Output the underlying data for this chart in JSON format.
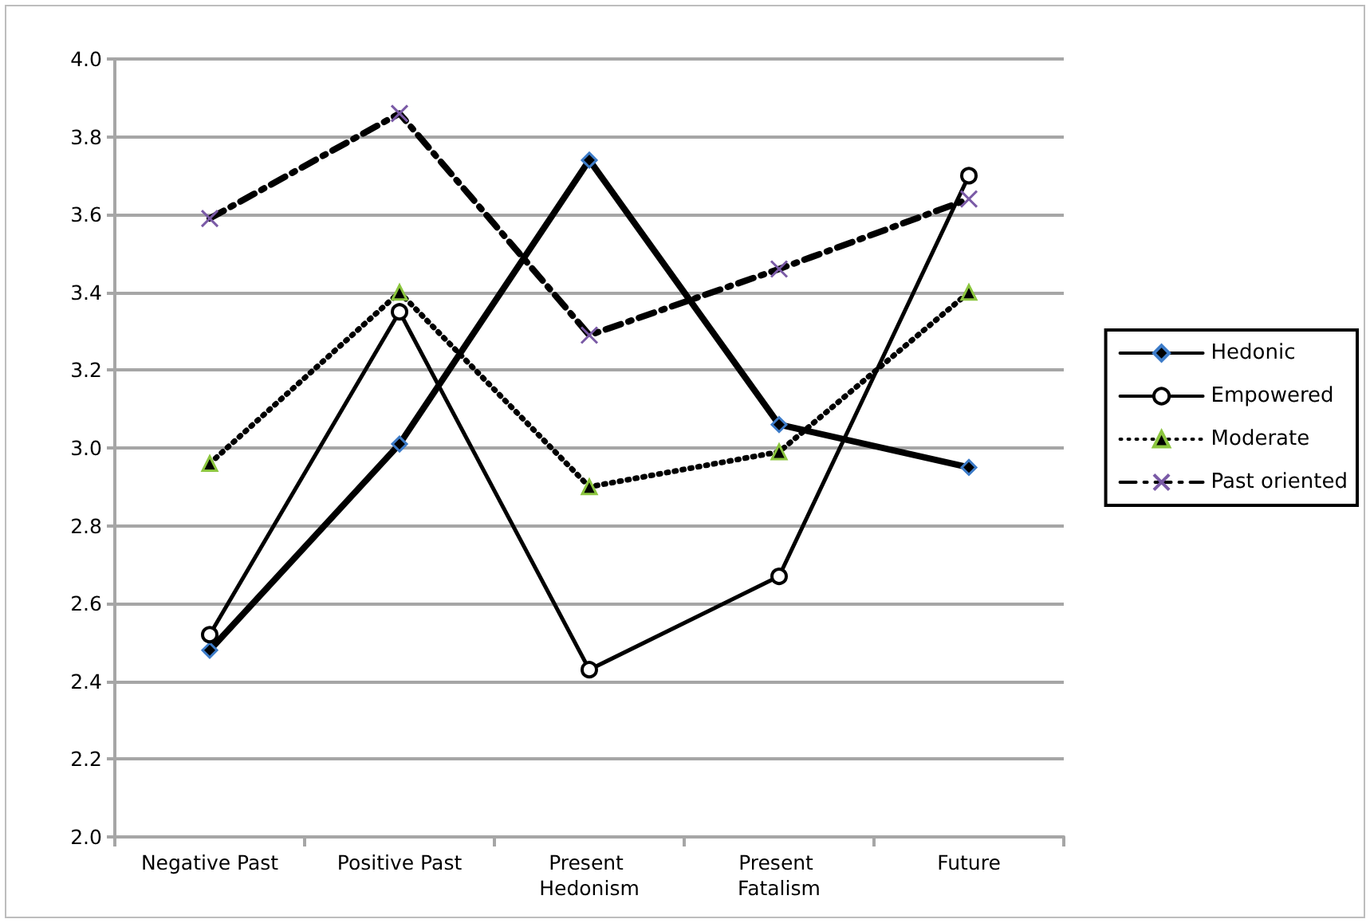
{
  "chart_data": {
    "type": "line",
    "categories": [
      "Negative Past",
      "Positive Past",
      "Present Hedonism",
      "Present Fatalism",
      "Future"
    ],
    "series": [
      {
        "name": "Hedonic",
        "color": "#000000",
        "marker": "diamond",
        "line_style": "solid",
        "values": [
          2.48,
          3.01,
          3.74,
          3.06,
          2.95
        ]
      },
      {
        "name": "Empowered",
        "color": "#000000",
        "marker": "circle",
        "line_style": "solid",
        "values": [
          2.52,
          3.35,
          2.43,
          2.67,
          3.7
        ]
      },
      {
        "name": "Moderate",
        "color": "#000000",
        "marker": "triangle",
        "line_style": "dotted",
        "values": [
          2.96,
          3.4,
          2.9,
          2.99,
          3.4
        ]
      },
      {
        "name": "Past oriented",
        "color": "#000000",
        "marker": "cross",
        "line_style": "dashed",
        "values": [
          3.59,
          3.86,
          3.29,
          3.46,
          3.64
        ]
      }
    ],
    "ylim": [
      2.0,
      4.0
    ],
    "yticks": [
      {
        "value": 2.0,
        "label": "2.0"
      },
      {
        "value": 2.2,
        "label": "2.2"
      },
      {
        "value": 2.4,
        "label": "2.4"
      },
      {
        "value": 2.6,
        "label": "2.6"
      },
      {
        "value": 2.8,
        "label": "2.8"
      },
      {
        "value": 3.0,
        "label": "3.0"
      },
      {
        "value": 3.2,
        "label": "3.2"
      },
      {
        "value": 3.4,
        "label": "3.4"
      },
      {
        "value": 3.6,
        "label": "3.6"
      },
      {
        "value": 3.8,
        "label": "3.8"
      },
      {
        "value": 4.0,
        "label": "4.0"
      }
    ],
    "grid": "y",
    "legend": "right"
  }
}
